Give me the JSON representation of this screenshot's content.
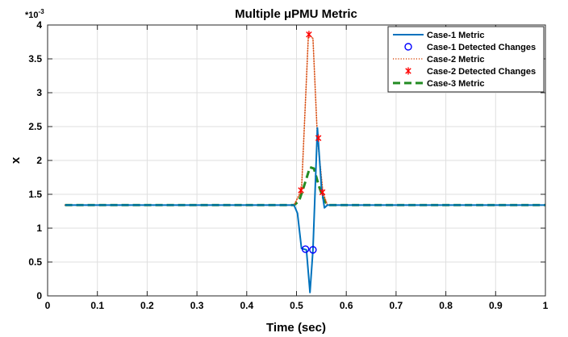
{
  "chart_data": {
    "type": "line",
    "title": "Multiple μPMU Metric",
    "xlabel": "Time (sec)",
    "ylabel": "x",
    "y_multiplier": "*10",
    "y_multiplier_exp": "-3",
    "xlim": [
      0,
      1
    ],
    "ylim": [
      0,
      4
    ],
    "x_ticks": [
      0,
      0.1,
      0.2,
      0.3,
      0.4,
      0.5,
      0.6,
      0.7,
      0.8,
      0.9,
      1
    ],
    "x_tick_labels": [
      "0",
      "0.1",
      "0.2",
      "0.3",
      "0.4",
      "0.5",
      "0.6",
      "0.7",
      "0.8",
      "0.9",
      "1"
    ],
    "y_ticks": [
      0,
      0.5,
      1,
      1.5,
      2,
      2.5,
      3,
      3.5,
      4
    ],
    "y_tick_labels": [
      "0",
      "0.5",
      "1",
      "1.5",
      "2",
      "2.5",
      "3",
      "3.5",
      "4"
    ],
    "grid": true,
    "legend_position": "top-right",
    "series": [
      {
        "name": "Case-1 Metric",
        "kind": "line",
        "style": "solid",
        "color": "#0072BD",
        "x": [
          0.035,
          0.495,
          0.502,
          0.51,
          0.52,
          0.527,
          0.533,
          0.542,
          0.55,
          0.556,
          0.562,
          1.0
        ],
        "y": [
          1.34,
          1.34,
          1.22,
          0.7,
          0.68,
          0.05,
          0.68,
          2.48,
          1.6,
          1.3,
          1.34,
          1.34
        ]
      },
      {
        "name": "Case-1 Detected Changes",
        "kind": "marker",
        "marker": "circle",
        "color": "#0000FF",
        "x": [
          0.518,
          0.533
        ],
        "y": [
          0.69,
          0.68
        ]
      },
      {
        "name": "Case-2 Metric",
        "kind": "line",
        "style": "dotted",
        "color": "#D95319",
        "x": [
          0.035,
          0.495,
          0.51,
          0.524,
          0.533,
          0.542,
          0.553,
          0.562,
          1.0
        ],
        "y": [
          1.34,
          1.34,
          1.56,
          3.87,
          3.8,
          2.34,
          1.53,
          1.34,
          1.34
        ]
      },
      {
        "name": "Case-2 Detected Changes",
        "kind": "marker",
        "marker": "asterisk",
        "color": "#FF0000",
        "x": [
          0.509,
          0.525,
          0.544,
          0.552
        ],
        "y": [
          1.56,
          3.86,
          2.33,
          1.53
        ]
      },
      {
        "name": "Case-3 Metric",
        "kind": "line",
        "style": "dashed",
        "color": "#228B22",
        "x": [
          0.035,
          0.495,
          0.505,
          0.515,
          0.527,
          0.535,
          0.545,
          0.555,
          0.562,
          1.0
        ],
        "y": [
          1.34,
          1.34,
          1.4,
          1.62,
          1.9,
          1.88,
          1.62,
          1.42,
          1.34,
          1.34
        ]
      }
    ]
  }
}
